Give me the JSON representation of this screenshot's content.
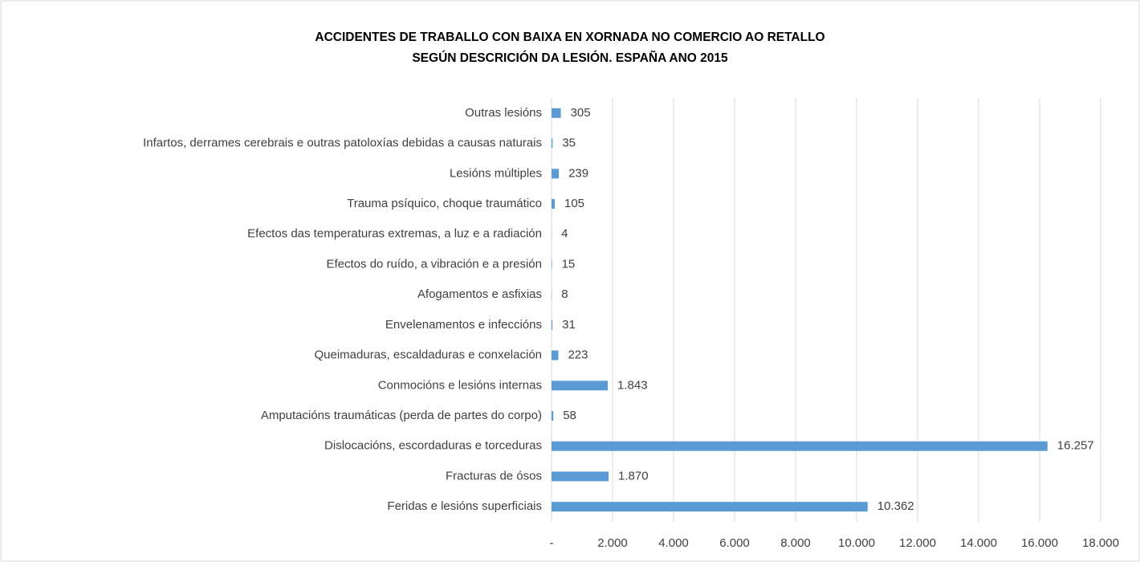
{
  "chart_data": {
    "type": "barh",
    "title": "ACCIDENTES DE TRABALLO CON BAIXA EN XORNADA NO COMERCIO AO RETALLO",
    "subtitle": "SEGÚN DESCRICIÓN DA LESIÓN. ESPAÑA ANO 2015",
    "categories": [
      "Outras lesións",
      "Infartos, derrames cerebrais e outras patoloxías debidas a causas naturais",
      "Lesións múltiples",
      "Trauma psíquico, choque traumático",
      "Efectos das temperaturas extremas, a luz e a radiación",
      "Efectos do ruído, a vibración e a presión",
      "Afogamentos e asfixias",
      "Envelenamentos e infeccións",
      "Queimaduras, escaldaduras e conxelación",
      "Conmocións e lesións internas",
      "Amputacións traumáticas (perda de partes do corpo)",
      "Dislocacións, escordaduras e torceduras",
      "Fracturas de ósos",
      "Feridas e lesións superficiais"
    ],
    "values": [
      305,
      35,
      239,
      105,
      4,
      15,
      8,
      31,
      223,
      1843,
      58,
      16257,
      1870,
      10362
    ],
    "value_labels": [
      "305",
      "35",
      "239",
      "105",
      "4",
      "15",
      "8",
      "31",
      "223",
      "1.843",
      "58",
      "16.257",
      "1.870",
      "10.362"
    ],
    "color": "#5b9bd5",
    "xlim": [
      0,
      18000
    ],
    "xticks": [
      {
        "value": 0,
        "label": "-"
      },
      {
        "value": 2000,
        "label": "2.000"
      },
      {
        "value": 4000,
        "label": "4.000"
      },
      {
        "value": 6000,
        "label": "6.000"
      },
      {
        "value": 8000,
        "label": "8.000"
      },
      {
        "value": 10000,
        "label": "10.000"
      },
      {
        "value": 12000,
        "label": "12.000"
      },
      {
        "value": 14000,
        "label": "14.000"
      },
      {
        "value": 16000,
        "label": "16.000"
      },
      {
        "value": 18000,
        "label": "18.000"
      }
    ],
    "grid": true
  }
}
